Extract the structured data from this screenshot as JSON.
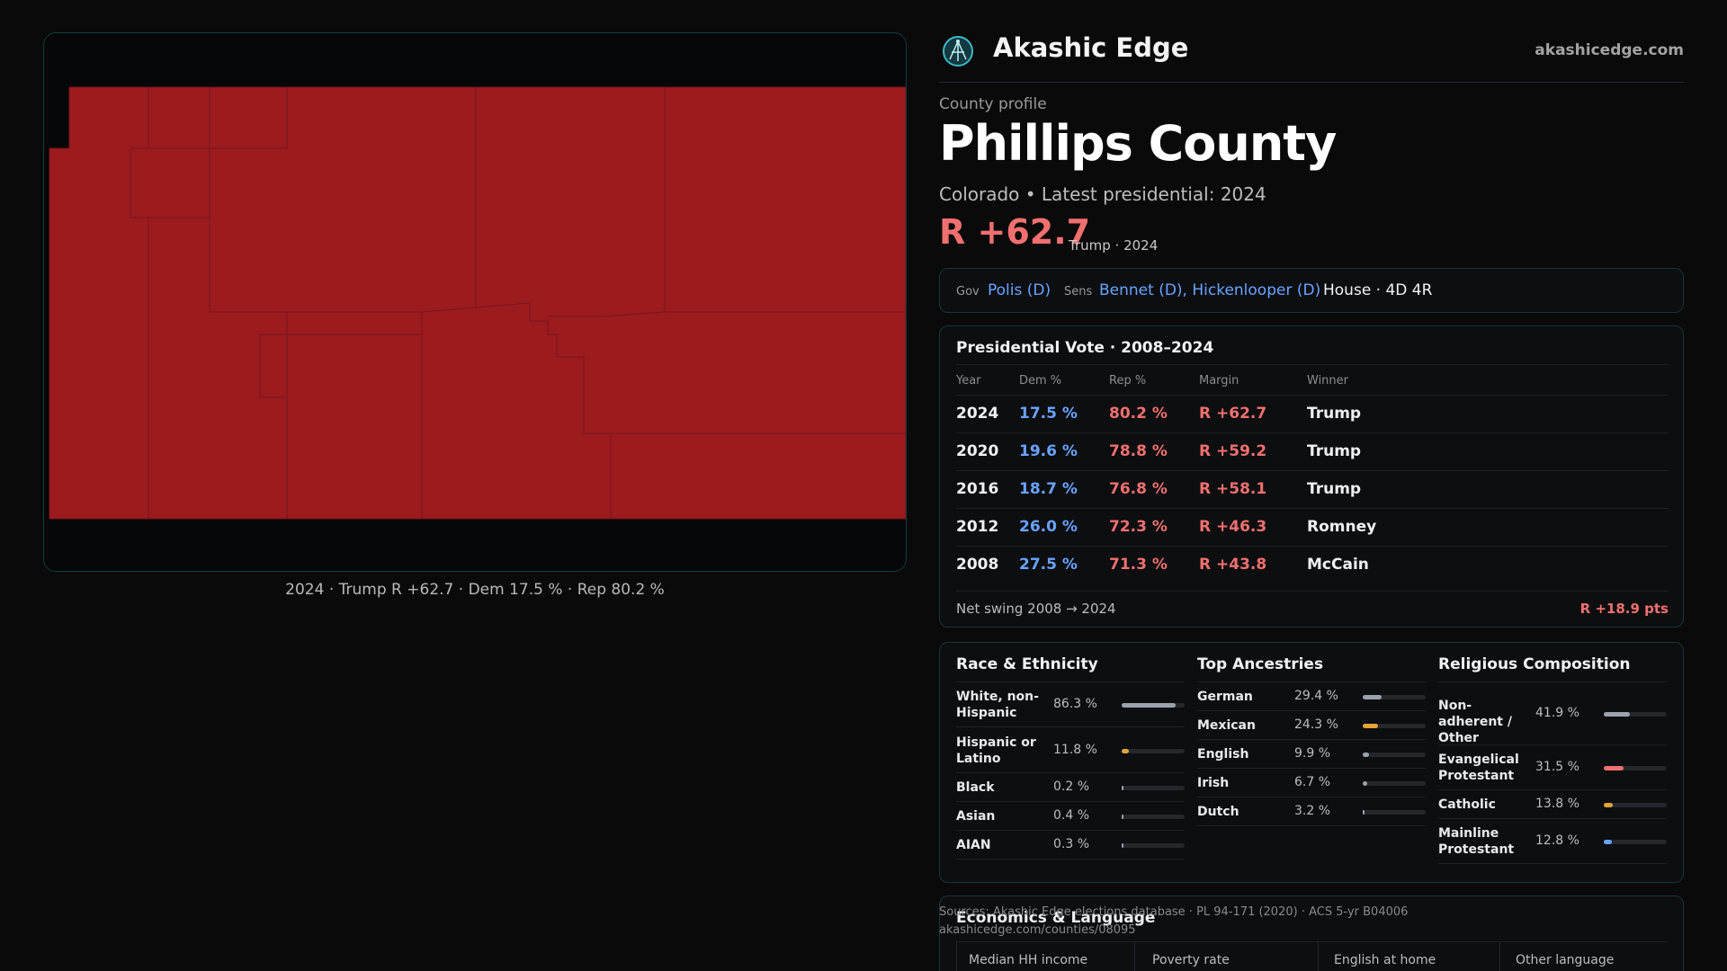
{
  "brand": {
    "name": "Akashic Edge",
    "url": "akashicedge.com",
    "logo_icon": "globe-network-icon"
  },
  "map": {
    "fill_color": "#9b1b1f",
    "caption": "2024 · Trump R +62.7 · Dem 17.5 % · Rep 80.2 %"
  },
  "profile": {
    "eyebrow": "County profile",
    "county": "Phillips County",
    "subtitle": "Colorado • Latest presidential: 2024",
    "margin": "R +62.7",
    "margin_note": "Trump · 2024"
  },
  "officials": {
    "gov_label": "Gov",
    "gov_value": "Polis (D)",
    "sens_label": "Sens",
    "sens_value": "Bennet (D), Hickenlooper (D)",
    "house": "House · 4D 4R"
  },
  "presidential": {
    "title": "Presidential Vote · 2008–2024",
    "headers": {
      "year": "Year",
      "dem": "Dem %",
      "rep": "Rep %",
      "margin": "Margin",
      "winner": "Winner"
    },
    "rows": [
      {
        "year": "2024",
        "dem": "17.5 %",
        "rep": "80.2 %",
        "margin": "R +62.7",
        "winner": "Trump"
      },
      {
        "year": "2020",
        "dem": "19.6 %",
        "rep": "78.8 %",
        "margin": "R +59.2",
        "winner": "Trump"
      },
      {
        "year": "2016",
        "dem": "18.7 %",
        "rep": "76.8 %",
        "margin": "R +58.1",
        "winner": "Trump"
      },
      {
        "year": "2012",
        "dem": "26.0 %",
        "rep": "72.3 %",
        "margin": "R +46.3",
        "winner": "Romney"
      },
      {
        "year": "2008",
        "dem": "27.5 %",
        "rep": "71.3 %",
        "margin": "R +43.8",
        "winner": "McCain"
      }
    ],
    "swing_label": "Net swing 2008 → 2024",
    "swing_value": "R +18.9 pts"
  },
  "race": {
    "title": "Race & Ethnicity",
    "rows": [
      {
        "label": "White, non-Hispanic",
        "value": "86.3 %",
        "pct": 86.3,
        "color": "#9aa3ad"
      },
      {
        "label": "Hispanic or Latino",
        "value": "11.8 %",
        "pct": 11.8,
        "color": "#e0a53a"
      },
      {
        "label": "Black",
        "value": "0.2 %",
        "pct": 0.2,
        "color": "#9aa3ad"
      },
      {
        "label": "Asian",
        "value": "0.4 %",
        "pct": 0.4,
        "color": "#9aa3ad"
      },
      {
        "label": "AIAN",
        "value": "0.3 %",
        "pct": 0.3,
        "color": "#9aa3ad"
      }
    ]
  },
  "ancestry": {
    "title": "Top Ancestries",
    "rows": [
      {
        "label": "German",
        "value": "29.4 %",
        "pct": 29.4,
        "color": "#9aa3ad"
      },
      {
        "label": "Mexican",
        "value": "24.3 %",
        "pct": 24.3,
        "color": "#e0a53a"
      },
      {
        "label": "English",
        "value": "9.9 %",
        "pct": 9.9,
        "color": "#9aa3ad"
      },
      {
        "label": "Irish",
        "value": "6.7 %",
        "pct": 6.7,
        "color": "#9aa3ad"
      },
      {
        "label": "Dutch",
        "value": "3.2 %",
        "pct": 3.2,
        "color": "#9aa3ad"
      }
    ]
  },
  "religion": {
    "title": "Religious Composition",
    "rows": [
      {
        "label": "Non-adherent / Other",
        "value": "41.9 %",
        "pct": 41.9,
        "color": "#9aa3ad"
      },
      {
        "label": "Evangelical Protestant",
        "value": "31.5 %",
        "pct": 31.5,
        "color": "#f0706f"
      },
      {
        "label": "Catholic",
        "value": "13.8 %",
        "pct": 13.8,
        "color": "#e0a53a"
      },
      {
        "label": "Mainline Protestant",
        "value": "12.8 %",
        "pct": 12.8,
        "color": "#6aa3ff"
      }
    ]
  },
  "economics": {
    "title": "Economics & Language",
    "headers": [
      "Median HH income",
      "Poverty rate",
      "English at home",
      "Other language"
    ]
  },
  "sources": {
    "line1": "Sources: Akashic Edge elections database · PL 94-171 (2020) · ACS 5-yr B04006",
    "line2": "akashicedge.com/counties/08095"
  }
}
